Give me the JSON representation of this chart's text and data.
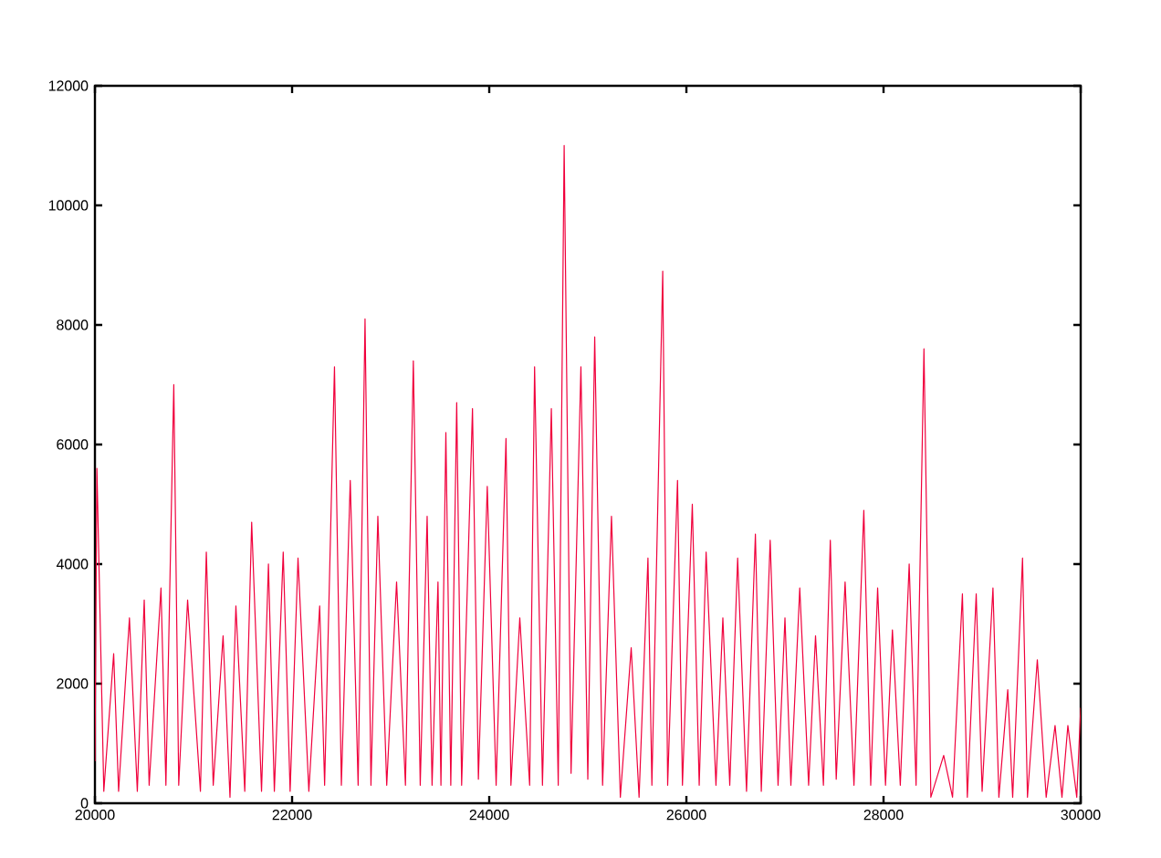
{
  "chart_data": {
    "type": "line",
    "color": "#f0003c",
    "marker": "none",
    "line_style": "solid",
    "xlim": [
      20000,
      30000
    ],
    "ylim": [
      0,
      12000
    ],
    "xticks": [
      20000,
      22000,
      24000,
      26000,
      28000,
      30000
    ],
    "yticks": [
      0,
      2000,
      4000,
      6000,
      8000,
      10000,
      12000
    ],
    "x": [
      20000,
      20020,
      20090,
      20190,
      20240,
      20350,
      20430,
      20500,
      20550,
      20670,
      20720,
      20800,
      20850,
      20940,
      21070,
      21130,
      21200,
      21300,
      21370,
      21430,
      21520,
      21590,
      21690,
      21760,
      21820,
      21910,
      21980,
      22060,
      22170,
      22280,
      22330,
      22430,
      22500,
      22590,
      22670,
      22740,
      22800,
      22870,
      22960,
      23060,
      23150,
      23230,
      23300,
      23370,
      23420,
      23480,
      23510,
      23560,
      23610,
      23670,
      23720,
      23830,
      23890,
      23980,
      24070,
      24170,
      24220,
      24310,
      24410,
      24460,
      24540,
      24630,
      24700,
      24760,
      24830,
      24930,
      25000,
      25070,
      25150,
      25240,
      25330,
      25440,
      25520,
      25610,
      25650,
      25760,
      25810,
      25910,
      25960,
      26060,
      26130,
      26200,
      26300,
      26370,
      26440,
      26520,
      26610,
      26700,
      26760,
      26850,
      26930,
      27000,
      27060,
      27150,
      27240,
      27310,
      27390,
      27460,
      27520,
      27610,
      27700,
      27800,
      27870,
      27940,
      28020,
      28090,
      28170,
      28260,
      28330,
      28410,
      28480,
      28610,
      28700,
      28800,
      28850,
      28940,
      29000,
      29110,
      29170,
      29260,
      29310,
      29410,
      29460,
      29560,
      29650,
      29740,
      29810,
      29870,
      29960,
      30000
    ],
    "values": [
      700,
      5600,
      200,
      2500,
      200,
      3100,
      200,
      3400,
      300,
      3600,
      300,
      7000,
      300,
      3400,
      200,
      4200,
      300,
      2800,
      100,
      3300,
      200,
      4700,
      200,
      4000,
      200,
      4200,
      200,
      4100,
      200,
      3300,
      300,
      7300,
      300,
      5400,
      300,
      8100,
      300,
      4800,
      300,
      3700,
      300,
      7400,
      300,
      4800,
      300,
      3700,
      300,
      6200,
      300,
      6700,
      300,
      6600,
      400,
      5300,
      300,
      6100,
      300,
      3100,
      300,
      7300,
      300,
      6600,
      300,
      11000,
      500,
      7300,
      400,
      7800,
      300,
      4800,
      100,
      2600,
      100,
      4100,
      300,
      8900,
      300,
      5400,
      300,
      5000,
      300,
      4200,
      300,
      3100,
      300,
      4100,
      200,
      4500,
      200,
      4400,
      300,
      3100,
      300,
      3600,
      300,
      2800,
      300,
      4400,
      400,
      3700,
      300,
      4900,
      300,
      3600,
      300,
      2900,
      300,
      4000,
      300,
      7600,
      100,
      800,
      100,
      3500,
      100,
      3500,
      200,
      3600,
      100,
      1900,
      100,
      4100,
      100,
      2400,
      100,
      1300,
      100,
      1300,
      100,
      1600
    ]
  }
}
